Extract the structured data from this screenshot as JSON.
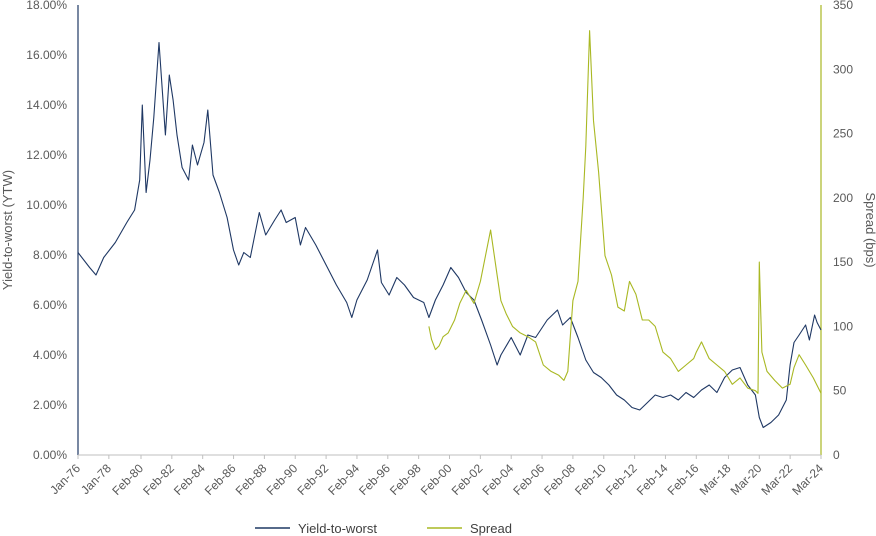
{
  "chart_data": {
    "type": "line",
    "title": "",
    "y_left_label": "Yield-to-worst (YTW)",
    "y_right_label": "Spread (bps)",
    "y_left_range": [
      0,
      18
    ],
    "y_left_ticks": [
      "0.00%",
      "2.00%",
      "4.00%",
      "6.00%",
      "8.00%",
      "10.00%",
      "12.00%",
      "14.00%",
      "16.00%",
      "18.00%"
    ],
    "y_right_range": [
      0,
      350
    ],
    "y_right_ticks": [
      "0",
      "50",
      "100",
      "150",
      "200",
      "250",
      "300",
      "350"
    ],
    "x_range": [
      "1976-01",
      "2024-03"
    ],
    "x_ticks": [
      {
        "date": "1976-01",
        "label": "Jan-76"
      },
      {
        "date": "1978-01",
        "label": "Jan-78"
      },
      {
        "date": "1980-02",
        "label": "Feb-80"
      },
      {
        "date": "1982-02",
        "label": "Feb-82"
      },
      {
        "date": "1984-02",
        "label": "Feb-84"
      },
      {
        "date": "1986-02",
        "label": "Feb-86"
      },
      {
        "date": "1988-02",
        "label": "Feb-88"
      },
      {
        "date": "1990-02",
        "label": "Feb-90"
      },
      {
        "date": "1992-02",
        "label": "Feb-92"
      },
      {
        "date": "1994-02",
        "label": "Feb-94"
      },
      {
        "date": "1996-02",
        "label": "Feb-96"
      },
      {
        "date": "1998-02",
        "label": "Feb-98"
      },
      {
        "date": "2000-02",
        "label": "Feb-00"
      },
      {
        "date": "2002-02",
        "label": "Feb-02"
      },
      {
        "date": "2004-02",
        "label": "Feb-04"
      },
      {
        "date": "2006-02",
        "label": "Feb-06"
      },
      {
        "date": "2008-02",
        "label": "Feb-08"
      },
      {
        "date": "2010-02",
        "label": "Feb-10"
      },
      {
        "date": "2012-02",
        "label": "Feb-12"
      },
      {
        "date": "2014-02",
        "label": "Feb-14"
      },
      {
        "date": "2016-02",
        "label": "Feb-16"
      },
      {
        "date": "2018-03",
        "label": "Mar-18"
      },
      {
        "date": "2020-03",
        "label": "Mar-20"
      },
      {
        "date": "2022-03",
        "label": "Mar-22"
      },
      {
        "date": "2024-03",
        "label": "Mar-24"
      }
    ],
    "grid": false,
    "legend_position": "bottom-center",
    "series": [
      {
        "name": "Yield-to-worst",
        "axis": "left",
        "color": "#1f3864",
        "x": [
          "1976-01",
          "1976-10",
          "1977-03",
          "1977-09",
          "1978-06",
          "1979-03",
          "1979-09",
          "1980-01",
          "1980-03",
          "1980-06",
          "1980-09",
          "1980-12",
          "1981-04",
          "1981-09",
          "1981-12",
          "1982-03",
          "1982-06",
          "1982-10",
          "1983-03",
          "1983-06",
          "1983-10",
          "1984-03",
          "1984-06",
          "1984-10",
          "1985-03",
          "1985-09",
          "1986-02",
          "1986-06",
          "1986-10",
          "1987-03",
          "1987-10",
          "1988-03",
          "1988-10",
          "1989-03",
          "1989-07",
          "1990-02",
          "1990-06",
          "1990-10",
          "1991-06",
          "1992-02",
          "1992-10",
          "1993-06",
          "1993-10",
          "1994-02",
          "1994-10",
          "1995-06",
          "1995-09",
          "1996-03",
          "1996-09",
          "1997-03",
          "1997-10",
          "1998-06",
          "1998-10",
          "1999-03",
          "1999-09",
          "2000-03",
          "2000-09",
          "2001-03",
          "2001-09",
          "2002-03",
          "2002-10",
          "2003-03",
          "2003-06",
          "2004-02",
          "2004-09",
          "2005-03",
          "2005-09",
          "2006-06",
          "2007-02",
          "2007-06",
          "2007-12",
          "2008-06",
          "2008-12",
          "2009-06",
          "2009-12",
          "2010-06",
          "2010-12",
          "2011-06",
          "2011-12",
          "2012-06",
          "2012-12",
          "2013-06",
          "2013-12",
          "2014-06",
          "2014-12",
          "2015-06",
          "2015-12",
          "2016-06",
          "2016-12",
          "2017-06",
          "2017-12",
          "2018-06",
          "2018-12",
          "2019-06",
          "2019-12",
          "2020-03",
          "2020-06",
          "2020-12",
          "2021-06",
          "2021-12",
          "2022-03",
          "2022-06",
          "2022-10",
          "2023-03",
          "2023-06",
          "2023-10",
          "2023-12",
          "2024-03"
        ],
        "values": [
          8.1,
          7.5,
          7.2,
          7.9,
          8.5,
          9.3,
          9.8,
          11.0,
          14.0,
          10.5,
          11.8,
          13.5,
          16.5,
          12.8,
          15.2,
          14.2,
          12.8,
          11.5,
          11.0,
          12.4,
          11.6,
          12.5,
          13.8,
          11.2,
          10.5,
          9.5,
          8.2,
          7.6,
          8.1,
          7.9,
          9.7,
          8.8,
          9.4,
          9.8,
          9.3,
          9.5,
          8.4,
          9.1,
          8.4,
          7.6,
          6.8,
          6.1,
          5.5,
          6.2,
          7.0,
          8.2,
          6.9,
          6.4,
          7.1,
          6.8,
          6.3,
          6.1,
          5.5,
          6.2,
          6.8,
          7.5,
          7.1,
          6.5,
          6.2,
          5.4,
          4.4,
          3.6,
          4.0,
          4.7,
          4.0,
          4.8,
          4.7,
          5.4,
          5.8,
          5.2,
          5.5,
          4.7,
          3.8,
          3.3,
          3.1,
          2.8,
          2.4,
          2.2,
          1.9,
          1.8,
          2.1,
          2.4,
          2.3,
          2.4,
          2.2,
          2.5,
          2.3,
          2.6,
          2.8,
          2.5,
          3.1,
          3.4,
          3.5,
          2.8,
          2.4,
          1.5,
          1.1,
          1.3,
          1.6,
          2.2,
          3.6,
          4.5,
          4.8,
          5.2,
          4.6,
          5.6,
          5.3,
          5.0
        ]
      },
      {
        "name": "Spread",
        "axis": "right",
        "color": "#a9b823",
        "x": [
          "1998-10",
          "1998-12",
          "1999-03",
          "1999-06",
          "1999-09",
          "2000-01",
          "2000-06",
          "2000-10",
          "2001-03",
          "2001-09",
          "2002-02",
          "2002-06",
          "2002-10",
          "2003-03",
          "2003-06",
          "2003-10",
          "2004-03",
          "2004-09",
          "2005-03",
          "2005-09",
          "2006-03",
          "2006-09",
          "2007-03",
          "2007-07",
          "2007-10",
          "2008-02",
          "2008-06",
          "2008-10",
          "2008-12",
          "2009-03",
          "2009-06",
          "2009-10",
          "2010-03",
          "2010-08",
          "2011-01",
          "2011-06",
          "2011-10",
          "2012-03",
          "2012-08",
          "2013-01",
          "2013-06",
          "2013-12",
          "2014-06",
          "2014-12",
          "2015-06",
          "2015-12",
          "2016-02",
          "2016-06",
          "2016-12",
          "2017-06",
          "2017-12",
          "2018-06",
          "2018-12",
          "2019-06",
          "2019-12",
          "2020-02",
          "2020-03",
          "2020-05",
          "2020-09",
          "2021-03",
          "2021-09",
          "2022-03",
          "2022-06",
          "2022-10",
          "2023-03",
          "2023-09",
          "2024-03"
        ],
        "values": [
          100,
          90,
          82,
          85,
          92,
          95,
          105,
          118,
          128,
          118,
          135,
          155,
          175,
          140,
          120,
          110,
          100,
          95,
          92,
          88,
          70,
          65,
          62,
          58,
          65,
          120,
          135,
          200,
          240,
          330,
          260,
          220,
          155,
          140,
          115,
          112,
          135,
          125,
          105,
          105,
          100,
          80,
          75,
          65,
          70,
          75,
          80,
          88,
          75,
          70,
          65,
          55,
          60,
          52,
          50,
          48,
          150,
          80,
          65,
          58,
          52,
          55,
          68,
          78,
          70,
          60,
          48
        ]
      }
    ]
  }
}
